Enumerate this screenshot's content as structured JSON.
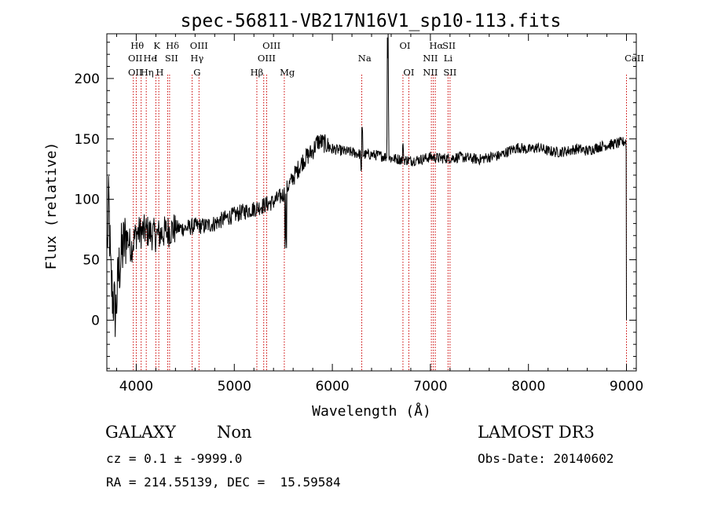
{
  "chart_data": {
    "type": "line",
    "title": "spec-56811-VB217N16V1_sp10-113.fits",
    "xlabel": "Wavelength (Å)",
    "ylabel": "Flux (relative)",
    "xlim": [
      3700,
      9100
    ],
    "ylim": [
      -42,
      237
    ],
    "xticks": [
      4000,
      5000,
      6000,
      7000,
      8000,
      9000
    ],
    "yticks": [
      0,
      50,
      100,
      150,
      200
    ],
    "xtick_labels": [
      "4000",
      "5000",
      "6000",
      "7000",
      "8000",
      "9000"
    ],
    "ytick_labels": [
      "0",
      "50",
      "100",
      "150",
      "200"
    ],
    "spectrum_knots": [
      [
        3705,
        60
      ],
      [
        3720,
        100
      ],
      [
        3740,
        35
      ],
      [
        3760,
        20
      ],
      [
        3790,
        5
      ],
      [
        3820,
        40
      ],
      [
        3850,
        55
      ],
      [
        3900,
        70
      ],
      [
        3950,
        60
      ],
      [
        4000,
        72
      ],
      [
        4100,
        74
      ],
      [
        4200,
        70
      ],
      [
        4300,
        73
      ],
      [
        4400,
        76
      ],
      [
        4500,
        76
      ],
      [
        4600,
        78
      ],
      [
        4700,
        78
      ],
      [
        4800,
        80
      ],
      [
        4900,
        84
      ],
      [
        5000,
        87
      ],
      [
        5100,
        90
      ],
      [
        5200,
        92
      ],
      [
        5300,
        95
      ],
      [
        5400,
        98
      ],
      [
        5500,
        104
      ],
      [
        5600,
        118
      ],
      [
        5700,
        132
      ],
      [
        5800,
        140
      ],
      [
        5850,
        148
      ],
      [
        5900,
        147
      ],
      [
        6000,
        142
      ],
      [
        6100,
        140
      ],
      [
        6200,
        139
      ],
      [
        6300,
        137
      ],
      [
        6400,
        137
      ],
      [
        6500,
        136
      ],
      [
        6600,
        134
      ],
      [
        6700,
        133
      ],
      [
        6800,
        132
      ],
      [
        6900,
        133
      ],
      [
        7000,
        135
      ],
      [
        7100,
        134
      ],
      [
        7200,
        134
      ],
      [
        7300,
        135
      ],
      [
        7400,
        134
      ],
      [
        7500,
        133
      ],
      [
        7600,
        135
      ],
      [
        7700,
        136
      ],
      [
        7800,
        140
      ],
      [
        7900,
        143
      ],
      [
        8000,
        141
      ],
      [
        8100,
        143
      ],
      [
        8200,
        140
      ],
      [
        8300,
        139
      ],
      [
        8400,
        140
      ],
      [
        8500,
        142
      ],
      [
        8600,
        140
      ],
      [
        8700,
        143
      ],
      [
        8800,
        145
      ],
      [
        8900,
        146
      ],
      [
        8990,
        148
      ]
    ],
    "spectral_features": [
      {
        "wavelength": 6300,
        "delta": -15,
        "width": 10
      },
      {
        "wavelength": 6305,
        "delta": 35,
        "width": 5
      },
      {
        "wavelength": 6560,
        "delta": 20,
        "width": 5
      },
      {
        "wavelength": 6565,
        "delta": 80,
        "width": 5
      },
      {
        "wavelength": 6570,
        "delta": 45,
        "width": 5
      },
      {
        "wavelength": 6720,
        "delta": 10,
        "width": 6
      },
      {
        "wavelength": 5520,
        "delta": -40,
        "width": 4
      },
      {
        "wavelength": 5530,
        "delta": -45,
        "width": 4
      },
      {
        "wavelength": 9000,
        "delta": -135,
        "width": 4
      }
    ],
    "line_markers": [
      {
        "wavelength": 3970,
        "labels": [
          "OII",
          "OII"
        ]
      },
      {
        "wavelength": 4000,
        "labels": [
          "Hθ",
          "OII"
        ]
      },
      {
        "wavelength": 4050,
        "labels": [
          "He",
          "Hη"
        ]
      },
      {
        "wavelength": 4102,
        "labels": [
          "K",
          "He",
          "Hη"
        ]
      },
      {
        "wavelength": 4200,
        "labels": [
          "K"
        ]
      },
      {
        "wavelength": 4230,
        "labels": [
          "H"
        ]
      },
      {
        "wavelength": 4320,
        "labels": [
          "SII"
        ]
      },
      {
        "wavelength": 4340,
        "labels": [
          "Hδ"
        ]
      },
      {
        "wavelength": 4570,
        "labels": [
          "OIII",
          "Hγ"
        ]
      },
      {
        "wavelength": 4640,
        "labels": [
          "G"
        ]
      },
      {
        "wavelength": 5230,
        "labels": [
          "Hβ"
        ]
      },
      {
        "wavelength": 5300,
        "labels": [
          "OIII"
        ]
      },
      {
        "wavelength": 5330,
        "labels": [
          "OIII"
        ]
      },
      {
        "wavelength": 5510,
        "labels": [
          "Mg"
        ]
      },
      {
        "wavelength": 6300,
        "labels": [
          "Na"
        ]
      },
      {
        "wavelength": 6720,
        "labels": [
          "OI"
        ]
      },
      {
        "wavelength": 6780,
        "labels": [
          "OI"
        ]
      },
      {
        "wavelength": 7010,
        "labels": [
          "Hα"
        ]
      },
      {
        "wavelength": 7030,
        "labels": [
          "NII"
        ]
      },
      {
        "wavelength": 7050,
        "labels": [
          "NII"
        ]
      },
      {
        "wavelength": 7180,
        "labels": [
          "SII",
          "Li"
        ]
      },
      {
        "wavelength": 7200,
        "labels": [
          "SII"
        ]
      },
      {
        "wavelength": 9000,
        "labels": [
          "CaII"
        ]
      }
    ],
    "line_label_rows": [
      {
        "wavelength": 4010,
        "row": 1,
        "text": "Hθ"
      },
      {
        "wavelength": 4210,
        "row": 1,
        "text": "K"
      },
      {
        "wavelength": 4370,
        "row": 1,
        "text": "Hδ"
      },
      {
        "wavelength": 4640,
        "row": 1,
        "text": "OIII"
      },
      {
        "wavelength": 5380,
        "row": 1,
        "text": "OIII"
      },
      {
        "wavelength": 6740,
        "row": 1,
        "text": "OI"
      },
      {
        "wavelength": 7060,
        "row": 1,
        "text": "Hα"
      },
      {
        "wavelength": 7190,
        "row": 1,
        "text": "SII"
      },
      {
        "wavelength": 3990,
        "row": 2,
        "text": "OII"
      },
      {
        "wavelength": 4140,
        "row": 2,
        "text": "He"
      },
      {
        "wavelength": 4200,
        "row": 2,
        "text": "I"
      },
      {
        "wavelength": 4360,
        "row": 2,
        "text": "SII"
      },
      {
        "wavelength": 4620,
        "row": 2,
        "text": "Hγ"
      },
      {
        "wavelength": 5330,
        "row": 2,
        "text": "OIII"
      },
      {
        "wavelength": 6330,
        "row": 2,
        "text": "Na"
      },
      {
        "wavelength": 7000,
        "row": 2,
        "text": "NII"
      },
      {
        "wavelength": 7180,
        "row": 2,
        "text": "Li"
      },
      {
        "wavelength": 9080,
        "row": 2,
        "text": "CaII"
      },
      {
        "wavelength": 3990,
        "row": 3,
        "text": "OII"
      },
      {
        "wavelength": 4110,
        "row": 3,
        "text": "Hη"
      },
      {
        "wavelength": 4240,
        "row": 3,
        "text": "H"
      },
      {
        "wavelength": 4620,
        "row": 3,
        "text": "G"
      },
      {
        "wavelength": 5230,
        "row": 3,
        "text": "Hβ"
      },
      {
        "wavelength": 5540,
        "row": 3,
        "text": "Mg"
      },
      {
        "wavelength": 6780,
        "row": 3,
        "text": "OI"
      },
      {
        "wavelength": 7000,
        "row": 3,
        "text": "NII"
      },
      {
        "wavelength": 7200,
        "row": 3,
        "text": "SII"
      }
    ]
  },
  "footer": {
    "object_class": "GALAXY",
    "subclass": "Non",
    "survey": "LAMOST DR3",
    "cz": "cz = 0.1 ± -9999.0",
    "obs_date": "Obs-Date: 20140602",
    "coords": "RA = 214.55139, DEC =  15.59584"
  },
  "colors": {
    "spectrum": "#000000",
    "line_marker": "#cc0000",
    "axes": "#000000",
    "background": "#ffffff"
  }
}
